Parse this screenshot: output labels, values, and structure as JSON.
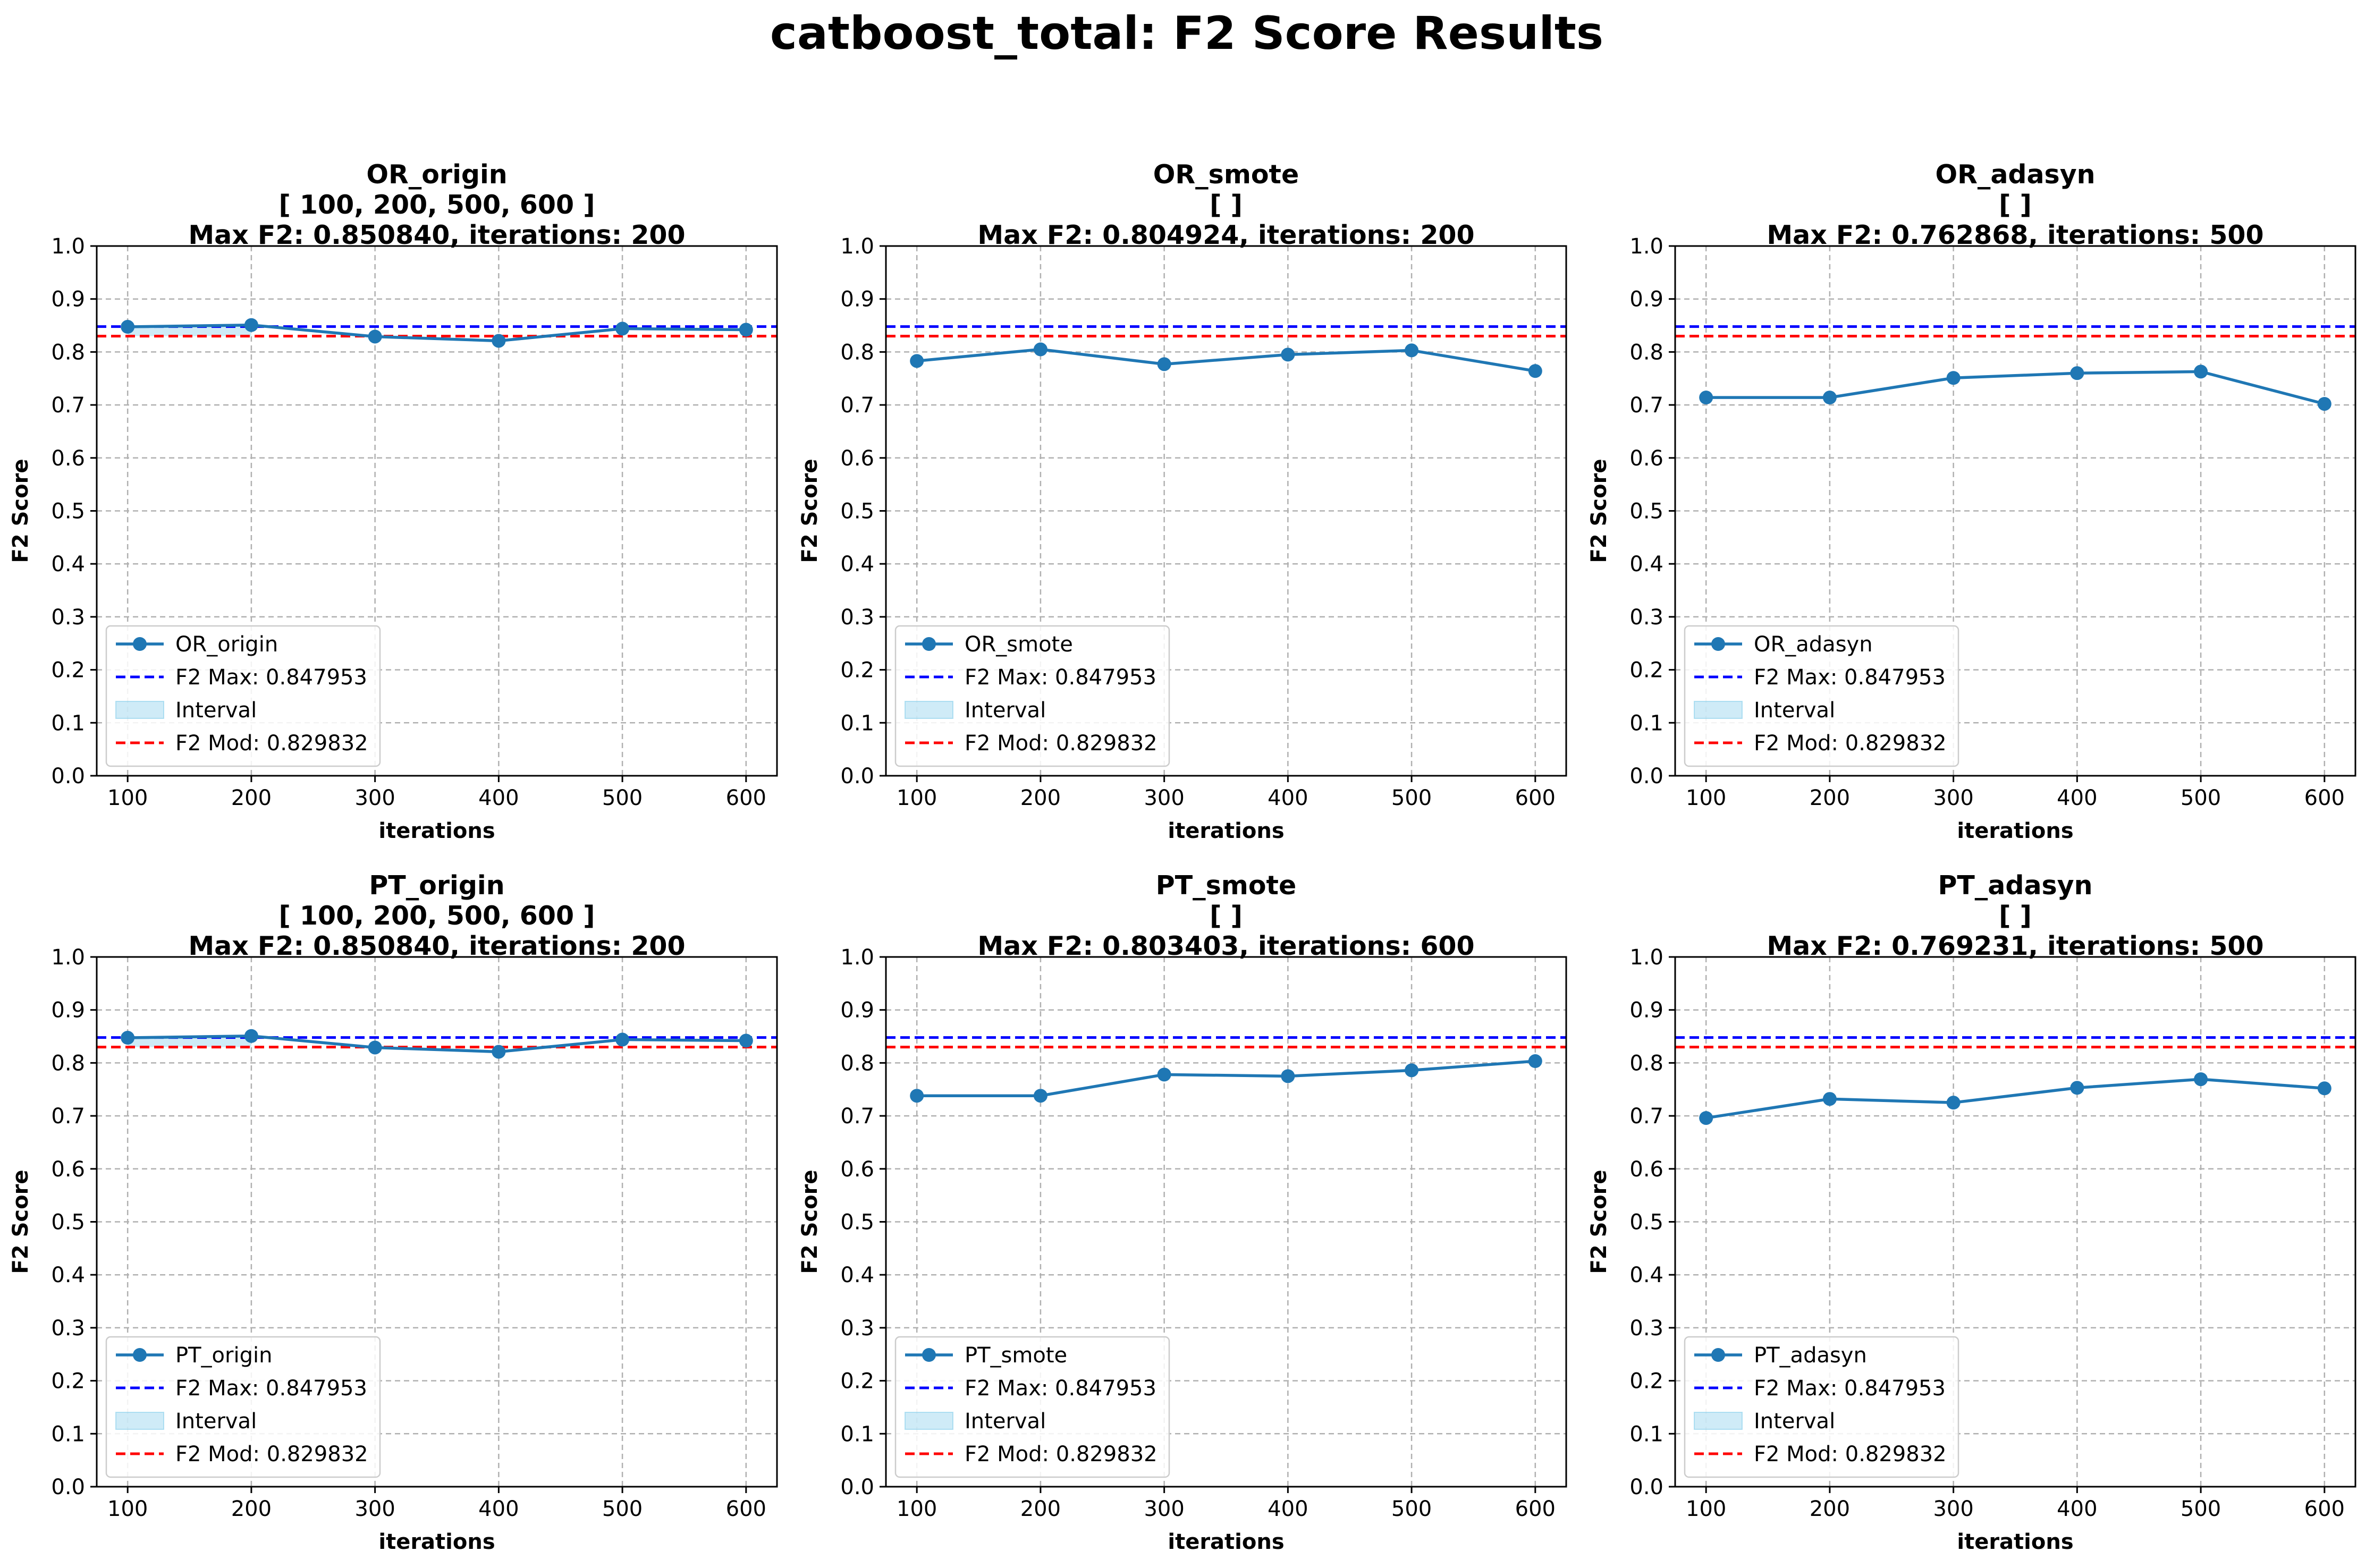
{
  "figure": {
    "title": "catboost_total: F2 Score Results",
    "colors": {
      "series": "#1f77b4",
      "max_line": "#0000ff",
      "mod_line": "#ff0000",
      "interval_fill": "#87ceeb",
      "grid": "#b0b0b0"
    }
  },
  "chart_data": [
    {
      "type": "line",
      "title": "OR_origin\n[ 100, 200, 500, 600 ]\nMax F2: 0.850840, iterations: 200",
      "xlabel": "iterations",
      "ylabel": "F2 Score",
      "x": [
        100,
        200,
        300,
        400,
        500,
        600
      ],
      "series": [
        {
          "name": "OR_origin",
          "values": [
            0.8475,
            0.8508,
            0.829,
            0.821,
            0.844,
            0.842
          ]
        }
      ],
      "xticks": [
        100,
        200,
        300,
        400,
        500,
        600
      ],
      "yticks": [
        0.0,
        0.1,
        0.2,
        0.3,
        0.4,
        0.5,
        0.6,
        0.7,
        0.8,
        0.9,
        1.0
      ],
      "xlim": [
        75,
        625
      ],
      "ylim": [
        0,
        1
      ],
      "hlines": [
        {
          "label": "F2 Max: 0.847953",
          "value": 0.847953,
          "style": "dashed",
          "color": "#0000ff"
        },
        {
          "label": "F2 Mod: 0.829832",
          "value": 0.829832,
          "style": "dashed",
          "color": "#ff0000"
        }
      ],
      "interval": {
        "label": "Interval",
        "y_range": [
          0.829832,
          0.847953
        ],
        "x_range": [
          100,
          200
        ]
      },
      "legend_entries": [
        "OR_origin",
        "F2 Max: 0.847953",
        "Interval",
        "F2 Mod: 0.829832"
      ],
      "legend_position": "lower-left",
      "grid": true
    },
    {
      "type": "line",
      "title": "OR_smote\n[  ]\nMax F2: 0.804924, iterations: 200",
      "xlabel": "iterations",
      "ylabel": "F2 Score",
      "x": [
        100,
        200,
        300,
        400,
        500,
        600
      ],
      "series": [
        {
          "name": "OR_smote",
          "values": [
            0.783,
            0.8049,
            0.777,
            0.795,
            0.803,
            0.764
          ]
        }
      ],
      "xticks": [
        100,
        200,
        300,
        400,
        500,
        600
      ],
      "yticks": [
        0.0,
        0.1,
        0.2,
        0.3,
        0.4,
        0.5,
        0.6,
        0.7,
        0.8,
        0.9,
        1.0
      ],
      "xlim": [
        75,
        625
      ],
      "ylim": [
        0,
        1
      ],
      "hlines": [
        {
          "label": "F2 Max: 0.847953",
          "value": 0.847953,
          "style": "dashed",
          "color": "#0000ff"
        },
        {
          "label": "F2 Mod: 0.829832",
          "value": 0.829832,
          "style": "dashed",
          "color": "#ff0000"
        }
      ],
      "interval": null,
      "legend_entries": [
        "OR_smote",
        "F2 Max: 0.847953",
        "Interval",
        "F2 Mod: 0.829832"
      ],
      "legend_position": "lower-left",
      "grid": true
    },
    {
      "type": "line",
      "title": "OR_adasyn\n[  ]\nMax F2: 0.762868, iterations: 500",
      "xlabel": "iterations",
      "ylabel": "F2 Score",
      "x": [
        100,
        200,
        300,
        400,
        500,
        600
      ],
      "series": [
        {
          "name": "OR_adasyn",
          "values": [
            0.714,
            0.714,
            0.751,
            0.76,
            0.7629,
            0.702
          ]
        }
      ],
      "xticks": [
        100,
        200,
        300,
        400,
        500,
        600
      ],
      "yticks": [
        0.0,
        0.1,
        0.2,
        0.3,
        0.4,
        0.5,
        0.6,
        0.7,
        0.8,
        0.9,
        1.0
      ],
      "xlim": [
        75,
        625
      ],
      "ylim": [
        0,
        1
      ],
      "hlines": [
        {
          "label": "F2 Max: 0.847953",
          "value": 0.847953,
          "style": "dashed",
          "color": "#0000ff"
        },
        {
          "label": "F2 Mod: 0.829832",
          "value": 0.829832,
          "style": "dashed",
          "color": "#ff0000"
        }
      ],
      "interval": null,
      "legend_entries": [
        "OR_adasyn",
        "F2 Max: 0.847953",
        "Interval",
        "F2 Mod: 0.829832"
      ],
      "legend_position": "lower-left",
      "grid": true
    },
    {
      "type": "line",
      "title": "PT_origin\n[ 100, 200, 500, 600 ]\nMax F2: 0.850840, iterations: 200",
      "xlabel": "iterations",
      "ylabel": "F2 Score",
      "x": [
        100,
        200,
        300,
        400,
        500,
        600
      ],
      "series": [
        {
          "name": "PT_origin",
          "values": [
            0.8475,
            0.8508,
            0.829,
            0.821,
            0.844,
            0.842
          ]
        }
      ],
      "xticks": [
        100,
        200,
        300,
        400,
        500,
        600
      ],
      "yticks": [
        0.0,
        0.1,
        0.2,
        0.3,
        0.4,
        0.5,
        0.6,
        0.7,
        0.8,
        0.9,
        1.0
      ],
      "xlim": [
        75,
        625
      ],
      "ylim": [
        0,
        1
      ],
      "hlines": [
        {
          "label": "F2 Max: 0.847953",
          "value": 0.847953,
          "style": "dashed",
          "color": "#0000ff"
        },
        {
          "label": "F2 Mod: 0.829832",
          "value": 0.829832,
          "style": "dashed",
          "color": "#ff0000"
        }
      ],
      "interval": {
        "label": "Interval",
        "y_range": [
          0.829832,
          0.847953
        ],
        "x_range": [
          100,
          200
        ]
      },
      "legend_entries": [
        "PT_origin",
        "F2 Max: 0.847953",
        "Interval",
        "F2 Mod: 0.829832"
      ],
      "legend_position": "lower-left",
      "grid": true
    },
    {
      "type": "line",
      "title": "PT_smote\n[  ]\nMax F2: 0.803403, iterations: 600",
      "xlabel": "iterations",
      "ylabel": "F2 Score",
      "x": [
        100,
        200,
        300,
        400,
        500,
        600
      ],
      "series": [
        {
          "name": "PT_smote",
          "values": [
            0.738,
            0.738,
            0.778,
            0.775,
            0.786,
            0.8034
          ]
        }
      ],
      "xticks": [
        100,
        200,
        300,
        400,
        500,
        600
      ],
      "yticks": [
        0.0,
        0.1,
        0.2,
        0.3,
        0.4,
        0.5,
        0.6,
        0.7,
        0.8,
        0.9,
        1.0
      ],
      "xlim": [
        75,
        625
      ],
      "ylim": [
        0,
        1
      ],
      "hlines": [
        {
          "label": "F2 Max: 0.847953",
          "value": 0.847953,
          "style": "dashed",
          "color": "#0000ff"
        },
        {
          "label": "F2 Mod: 0.829832",
          "value": 0.829832,
          "style": "dashed",
          "color": "#ff0000"
        }
      ],
      "interval": null,
      "legend_entries": [
        "PT_smote",
        "F2 Max: 0.847953",
        "Interval",
        "F2 Mod: 0.829832"
      ],
      "legend_position": "lower-left",
      "grid": true
    },
    {
      "type": "line",
      "title": "PT_adasyn\n[  ]\nMax F2: 0.769231, iterations: 500",
      "xlabel": "iterations",
      "ylabel": "F2 Score",
      "x": [
        100,
        200,
        300,
        400,
        500,
        600
      ],
      "series": [
        {
          "name": "PT_adasyn",
          "values": [
            0.696,
            0.732,
            0.725,
            0.753,
            0.7692,
            0.752
          ]
        }
      ],
      "xticks": [
        100,
        200,
        300,
        400,
        500,
        600
      ],
      "yticks": [
        0.0,
        0.1,
        0.2,
        0.3,
        0.4,
        0.5,
        0.6,
        0.7,
        0.8,
        0.9,
        1.0
      ],
      "xlim": [
        75,
        625
      ],
      "ylim": [
        0,
        1
      ],
      "hlines": [
        {
          "label": "F2 Max: 0.847953",
          "value": 0.847953,
          "style": "dashed",
          "color": "#0000ff"
        },
        {
          "label": "F2 Mod: 0.829832",
          "value": 0.829832,
          "style": "dashed",
          "color": "#ff0000"
        }
      ],
      "interval": null,
      "legend_entries": [
        "PT_adasyn",
        "F2 Max: 0.847953",
        "Interval",
        "F2 Mod: 0.829832"
      ],
      "legend_position": "lower-left",
      "grid": true
    }
  ]
}
